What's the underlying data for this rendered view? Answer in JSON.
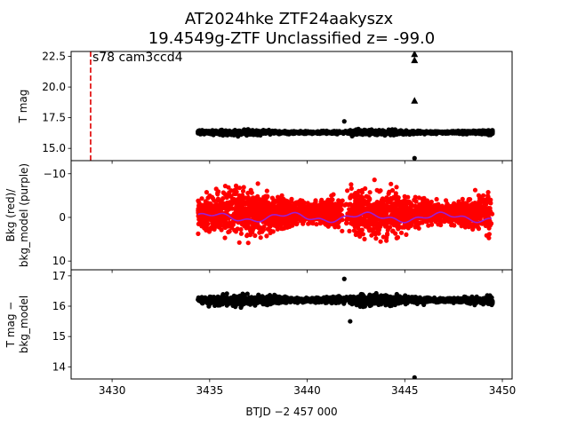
{
  "chart_data": {
    "type": "scatter",
    "title": [
      "AT2024hke  ZTF24aakyszx",
      "19.4549g-ZTF Unclassified z= -99.0"
    ],
    "xlabel": "BTJD −2 457 000",
    "xlim": [
      3427.9,
      3450.5
    ],
    "xticks": [
      3430,
      3435,
      3440,
      3445,
      3450
    ],
    "xtick_labels": [
      "3430",
      "3435",
      "3440",
      "3445",
      "3450"
    ],
    "data_span": [
      3434.4,
      3449.5
    ],
    "panels": [
      {
        "id": "tmag",
        "ylabel": "T mag",
        "ylim": [
          22.9,
          14.0
        ],
        "yticks": [
          15.0,
          17.5,
          20.0,
          22.5
        ],
        "ytick_labels": [
          "15.0",
          "17.5",
          "20.0",
          "22.5"
        ],
        "annotation": {
          "text": "s78 cam3ccd4",
          "x": 3428.9
        },
        "vline": {
          "x": 3428.9,
          "color": "#e00000"
        },
        "series": [
          {
            "name": "T mag",
            "color": "#000000",
            "marker": "dot",
            "baseline": 16.3,
            "spread": 0.18
          },
          {
            "name": "outliers",
            "color": "#000000",
            "marker": "dot",
            "points": [
              [
                3445.5,
                14.2
              ],
              [
                3441.9,
                17.2
              ],
              [
                3442.3,
                16.0
              ]
            ]
          },
          {
            "name": "upper limits",
            "color": "#000000",
            "marker": "triangle",
            "points": [
              [
                3445.5,
                18.9
              ],
              [
                3445.5,
                22.2
              ],
              [
                3445.5,
                22.7
              ]
            ]
          }
        ]
      },
      {
        "id": "bkg",
        "ylabel": [
          "Bkg (red)/",
          "bkg_model (purple)"
        ],
        "ylim": [
          -13.0,
          12.0
        ],
        "yticks": [
          -10,
          0,
          10
        ],
        "ytick_labels": [
          "−10",
          "0",
          "10"
        ],
        "series": [
          {
            "name": "Bkg",
            "color": "#ff0000",
            "marker": "dot",
            "baseline": -1.0,
            "spread": 4.5
          },
          {
            "name": "bkg_model",
            "color": "#9b1fd6",
            "marker": "line",
            "baseline": 0.0,
            "wave": 0.8
          }
        ]
      },
      {
        "id": "tmag_bkg",
        "ylabel": [
          "T mag −",
          "bkg_model"
        ],
        "ylim": [
          17.2,
          13.6
        ],
        "yticks": [
          14,
          15,
          16,
          17
        ],
        "ytick_labels": [
          "14",
          "15",
          "16",
          "17"
        ],
        "series": [
          {
            "name": "T mag - bkg_model",
            "color": "#000000",
            "marker": "dot",
            "baseline": 16.2,
            "spread": 0.15
          },
          {
            "name": "outliers",
            "color": "#000000",
            "marker": "dot",
            "points": [
              [
                3445.5,
                13.65
              ],
              [
                3442.2,
                15.5
              ],
              [
                3441.9,
                16.9
              ]
            ]
          }
        ]
      }
    ]
  }
}
